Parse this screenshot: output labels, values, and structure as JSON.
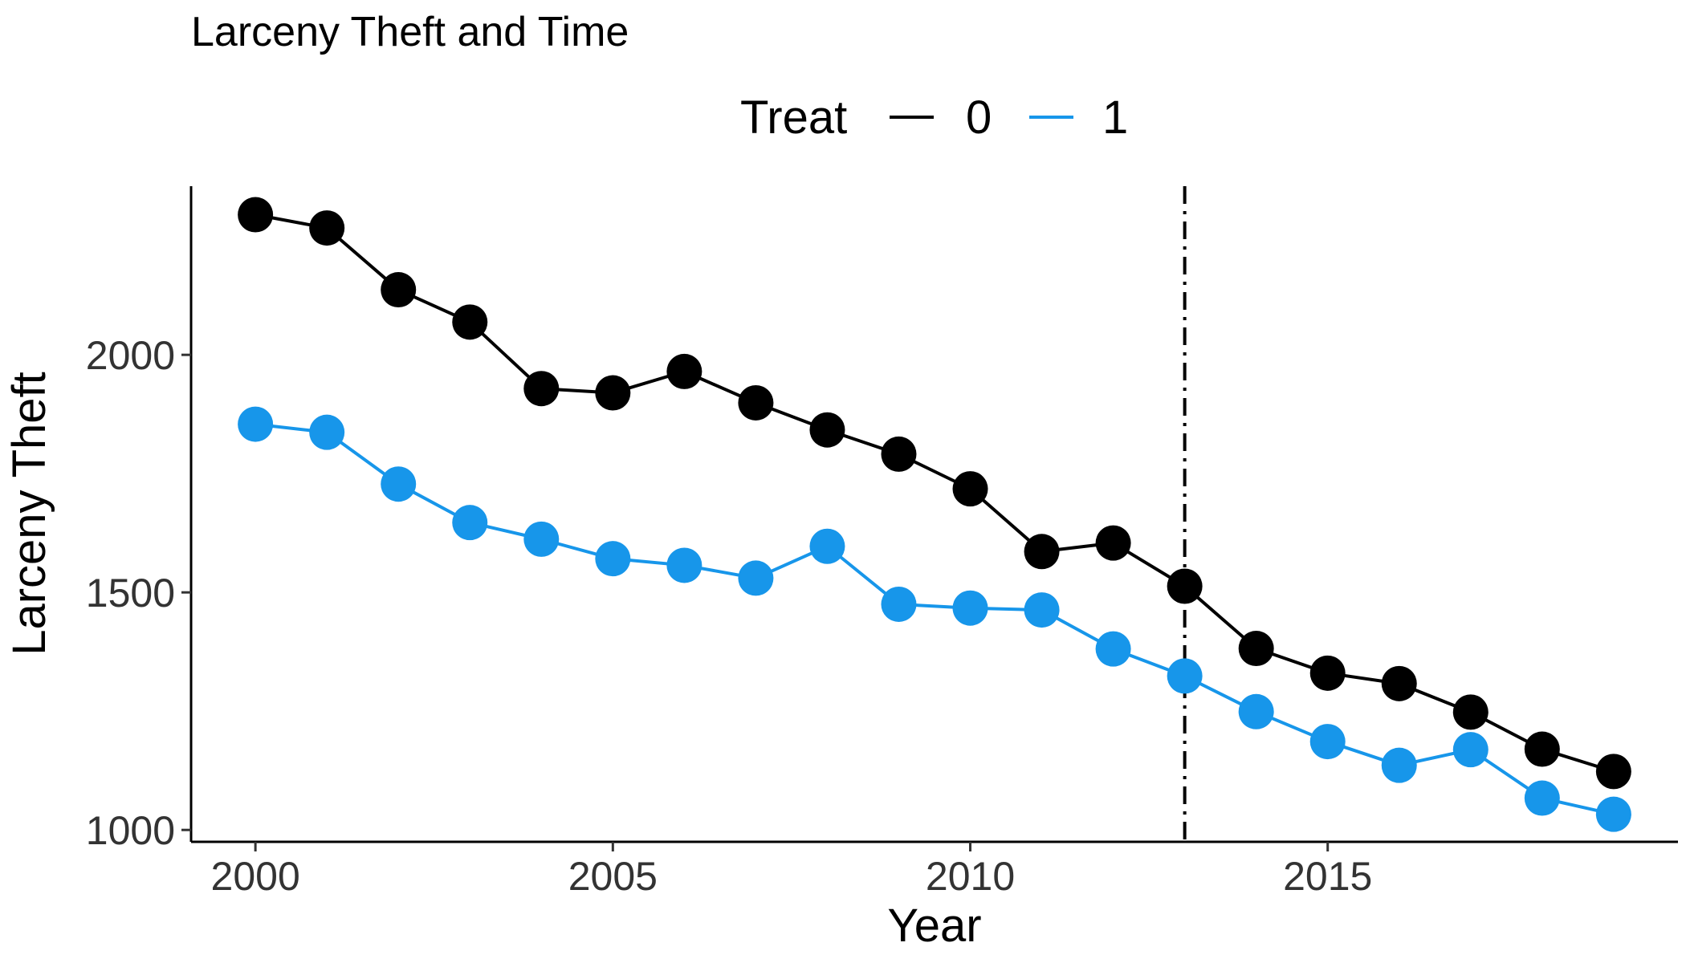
{
  "chart_data": {
    "type": "line",
    "title": "Larceny Theft and Time",
    "xlabel": "Year",
    "ylabel": "Larceny Theft",
    "xlim": [
      1999.1,
      2019.9
    ],
    "ylim": [
      975,
      2355
    ],
    "x_ticks": [
      2000,
      2005,
      2010,
      2015
    ],
    "y_ticks": [
      1000,
      1500,
      2000
    ],
    "x_tick_labels": [
      "2000",
      "2005",
      "2010",
      "2015"
    ],
    "y_tick_labels": [
      "1000",
      "1500",
      "2000"
    ],
    "grid": false,
    "legend": {
      "title": "Treat",
      "position": "top"
    },
    "vline": {
      "x": 2013,
      "style": "dashdot"
    },
    "x": [
      2000,
      2001,
      2002,
      2003,
      2004,
      2005,
      2006,
      2007,
      2008,
      2009,
      2010,
      2011,
      2012,
      2013,
      2014,
      2015,
      2016,
      2017,
      2018,
      2019
    ],
    "series": [
      {
        "name": "0",
        "color": "#000000",
        "values": [
          2295,
          2267,
          2137,
          2069,
          1929,
          1920,
          1965,
          1899,
          1842,
          1791,
          1718,
          1586,
          1604,
          1513,
          1382,
          1330,
          1308,
          1248,
          1170,
          1123
        ]
      },
      {
        "name": "1",
        "color": "#1796ea",
        "values": [
          1854,
          1837,
          1728,
          1647,
          1612,
          1571,
          1557,
          1530,
          1597,
          1475,
          1467,
          1463,
          1381,
          1324,
          1249,
          1186,
          1136,
          1169,
          1067,
          1033
        ]
      }
    ]
  }
}
